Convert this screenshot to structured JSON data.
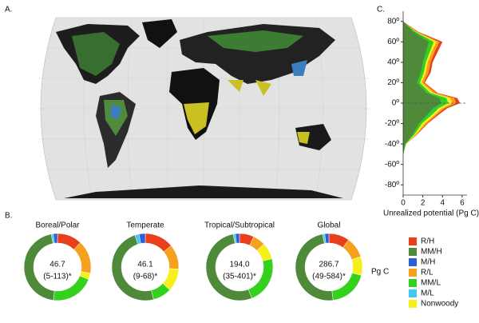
{
  "chart_data": [
    {
      "type": "map",
      "label": "A."
    },
    {
      "type": "stacked_area",
      "label": "C.",
      "xlabel": "Unrealized potential (Pg C)",
      "y": [
        -50,
        -40,
        -30,
        -20,
        -10,
        -5,
        0,
        5,
        10,
        20,
        30,
        40,
        50,
        60,
        70,
        80
      ],
      "series": [
        {
          "name": "R/H",
          "color": "#e8401c",
          "values": [
            0,
            0,
            0.05,
            0.1,
            0.2,
            0.25,
            0.4,
            0.3,
            0.15,
            0.1,
            0.2,
            0.2,
            0.3,
            0.3,
            0.1,
            0
          ]
        },
        {
          "name": "MM/H",
          "color": "#4e8a3a",
          "values": [
            0,
            0.2,
            1.0,
            1.6,
            2.5,
            3.0,
            3.8,
            3.6,
            2.3,
            1.4,
            1.8,
            2.0,
            2.3,
            2.6,
            1.0,
            0
          ]
        },
        {
          "name": "M/H",
          "color": "#2e5fd6",
          "values": [
            0,
            0,
            0,
            0,
            0.05,
            0.05,
            0.05,
            0.05,
            0.05,
            0,
            0,
            0,
            0,
            0,
            0,
            0
          ]
        },
        {
          "name": "R/L",
          "color": "#f5a01e",
          "values": [
            0,
            0,
            0.1,
            0.2,
            0.2,
            0.3,
            0.4,
            0.4,
            0.3,
            0.2,
            0.3,
            0.3,
            0.3,
            0.3,
            0.1,
            0
          ]
        },
        {
          "name": "MM/L",
          "color": "#34d11c",
          "values": [
            0,
            0.05,
            0.2,
            0.3,
            0.5,
            0.5,
            0.7,
            0.7,
            0.4,
            0.3,
            0.3,
            0.3,
            0.4,
            0.5,
            0.2,
            0
          ]
        },
        {
          "name": "M/L",
          "color": "#40c8f0",
          "values": [
            0,
            0,
            0,
            0,
            0.05,
            0.05,
            0.05,
            0.05,
            0,
            0,
            0,
            0,
            0,
            0,
            0,
            0
          ]
        },
        {
          "name": "Nonwoody",
          "color": "#f5f01a",
          "values": [
            0,
            0.05,
            0.15,
            0.3,
            0.3,
            0.35,
            0.4,
            0.4,
            0.3,
            0.2,
            0.2,
            0.2,
            0.2,
            0.3,
            0.1,
            0
          ]
        }
      ],
      "xlim": [
        0,
        6.5
      ],
      "xticks": [
        0,
        2,
        4,
        6
      ],
      "ylim": [
        -90,
        90
      ],
      "yticks": [
        {
          "value": 80,
          "label": "80º"
        },
        {
          "value": 60,
          "label": "60º"
        },
        {
          "value": 40,
          "label": "40º"
        },
        {
          "value": 20,
          "label": "20º"
        },
        {
          "value": 0,
          "label": "0º"
        },
        {
          "value": -20,
          "label": "-20º"
        },
        {
          "value": -40,
          "label": "-40º"
        },
        {
          "value": -60,
          "label": "-60º"
        },
        {
          "value": -80,
          "label": "-80º"
        }
      ]
    },
    {
      "type": "donut",
      "label": "B.",
      "title": "Boreal/Polar",
      "center_label": "46.7",
      "subtitle": "(5-113)*",
      "values": [
        12,
        45,
        2,
        16,
        21,
        1,
        3
      ]
    },
    {
      "type": "donut",
      "title": "Temperate",
      "center_label": "46.1",
      "subtitle": "(9-68)*",
      "values": [
        14,
        49,
        3,
        12,
        9,
        2,
        11
      ]
    },
    {
      "type": "donut",
      "title": "Tropical/Subtropical",
      "center_label": "194.0",
      "subtitle": "(35-401)*",
      "values": [
        7,
        53,
        2,
        6,
        23,
        1,
        8
      ]
    },
    {
      "type": "donut",
      "title": "Global",
      "center_label": "286.7",
      "subtitle": "(49-584)*",
      "unit": "Pg C",
      "values": [
        10,
        49,
        2,
        10,
        19,
        1,
        9
      ]
    }
  ]
}
